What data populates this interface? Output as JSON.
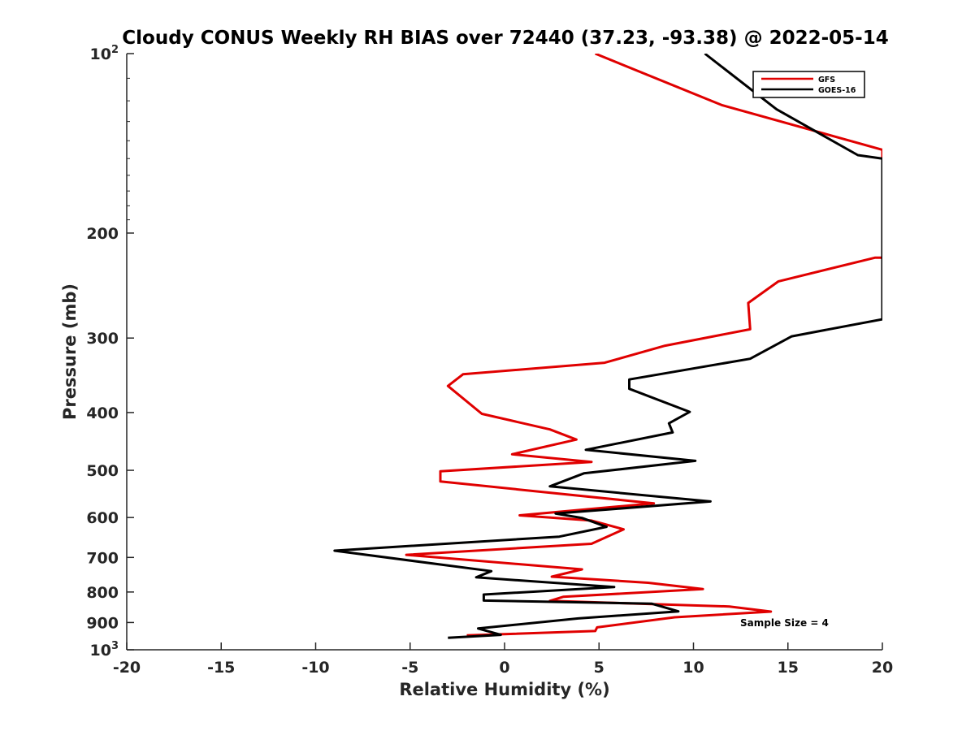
{
  "chart_data": {
    "type": "line",
    "title": "Cloudy CONUS Weekly RH BIAS over 72440 (37.23, -93.38) @ 2022-05-14",
    "xlabel": "Relative Humidity (%)",
    "ylabel": "Pressure (mb)",
    "xlim": [
      -20,
      20
    ],
    "ylim": [
      100,
      1000
    ],
    "y_scale": "log",
    "y_reversed": true,
    "x_ticks": [
      "-20",
      "-15",
      "-10",
      "-5",
      "0",
      "5",
      "10",
      "15",
      "20"
    ],
    "y_ticks": [
      {
        "value": 100,
        "base": "10",
        "exp": "2"
      },
      {
        "value": 200,
        "label": "200"
      },
      {
        "value": 300,
        "label": "300"
      },
      {
        "value": 400,
        "label": "400"
      },
      {
        "value": 500,
        "label": "500"
      },
      {
        "value": 600,
        "label": "600"
      },
      {
        "value": 700,
        "label": "700"
      },
      {
        "value": 800,
        "label": "800"
      },
      {
        "value": 900,
        "label": "900"
      },
      {
        "value": 1000,
        "base": "10",
        "exp": "3"
      }
    ],
    "legend_position": "top-right",
    "annotation": "Sample Size = 4",
    "series": [
      {
        "name": "GFS",
        "color": "#e00000",
        "points": [
          [
            4.8,
            100
          ],
          [
            11.5,
            122
          ],
          [
            20,
            145
          ],
          [
            20,
            220
          ],
          [
            19.6,
            220
          ],
          [
            14.5,
            241
          ],
          [
            12.9,
            262
          ],
          [
            13.0,
            290
          ],
          [
            8.5,
            309
          ],
          [
            5.3,
            330
          ],
          [
            -2.2,
            345
          ],
          [
            -3.0,
            361
          ],
          [
            -1.2,
            402
          ],
          [
            2.4,
            427
          ],
          [
            3.8,
            444
          ],
          [
            0.4,
            470
          ],
          [
            4.6,
            484
          ],
          [
            -3.4,
            502
          ],
          [
            -3.4,
            522
          ],
          [
            7.9,
            568
          ],
          [
            0.8,
            595
          ],
          [
            4.6,
            607
          ],
          [
            6.3,
            628
          ],
          [
            4.6,
            664
          ],
          [
            -5.2,
            693
          ],
          [
            4.1,
            733
          ],
          [
            2.5,
            754
          ],
          [
            7.6,
            772
          ],
          [
            10.5,
            791
          ],
          [
            3.1,
            815
          ],
          [
            2.4,
            828
          ],
          [
            11.9,
            846
          ],
          [
            14.1,
            863
          ],
          [
            9.0,
            882
          ],
          [
            4.9,
            917
          ],
          [
            4.8,
            930
          ],
          [
            -2.0,
            946
          ]
        ]
      },
      {
        "name": "GOES-16",
        "color": "#000000",
        "points": [
          [
            10.6,
            100
          ],
          [
            14.4,
            124
          ],
          [
            18.7,
            148
          ],
          [
            20,
            150
          ],
          [
            20,
            279
          ],
          [
            15.2,
            298
          ],
          [
            13.0,
            325
          ],
          [
            6.6,
            352
          ],
          [
            6.6,
            365
          ],
          [
            9.8,
            399
          ],
          [
            8.7,
            417
          ],
          [
            8.9,
            432
          ],
          [
            4.3,
            462
          ],
          [
            10.1,
            482
          ],
          [
            4.2,
            506
          ],
          [
            2.4,
            532
          ],
          [
            10.9,
            564
          ],
          [
            2.7,
            591
          ],
          [
            4.1,
            601
          ],
          [
            5.4,
            622
          ],
          [
            2.9,
            646
          ],
          [
            -9.0,
            682
          ],
          [
            -0.7,
            738
          ],
          [
            -1.5,
            756
          ],
          [
            5.8,
            785
          ],
          [
            -1.1,
            808
          ],
          [
            -1.1,
            827
          ],
          [
            7.8,
            837
          ],
          [
            9.2,
            862
          ],
          [
            3.9,
            886
          ],
          [
            -1.4,
            921
          ],
          [
            -0.2,
            944
          ],
          [
            -3.0,
            955
          ]
        ]
      }
    ]
  }
}
